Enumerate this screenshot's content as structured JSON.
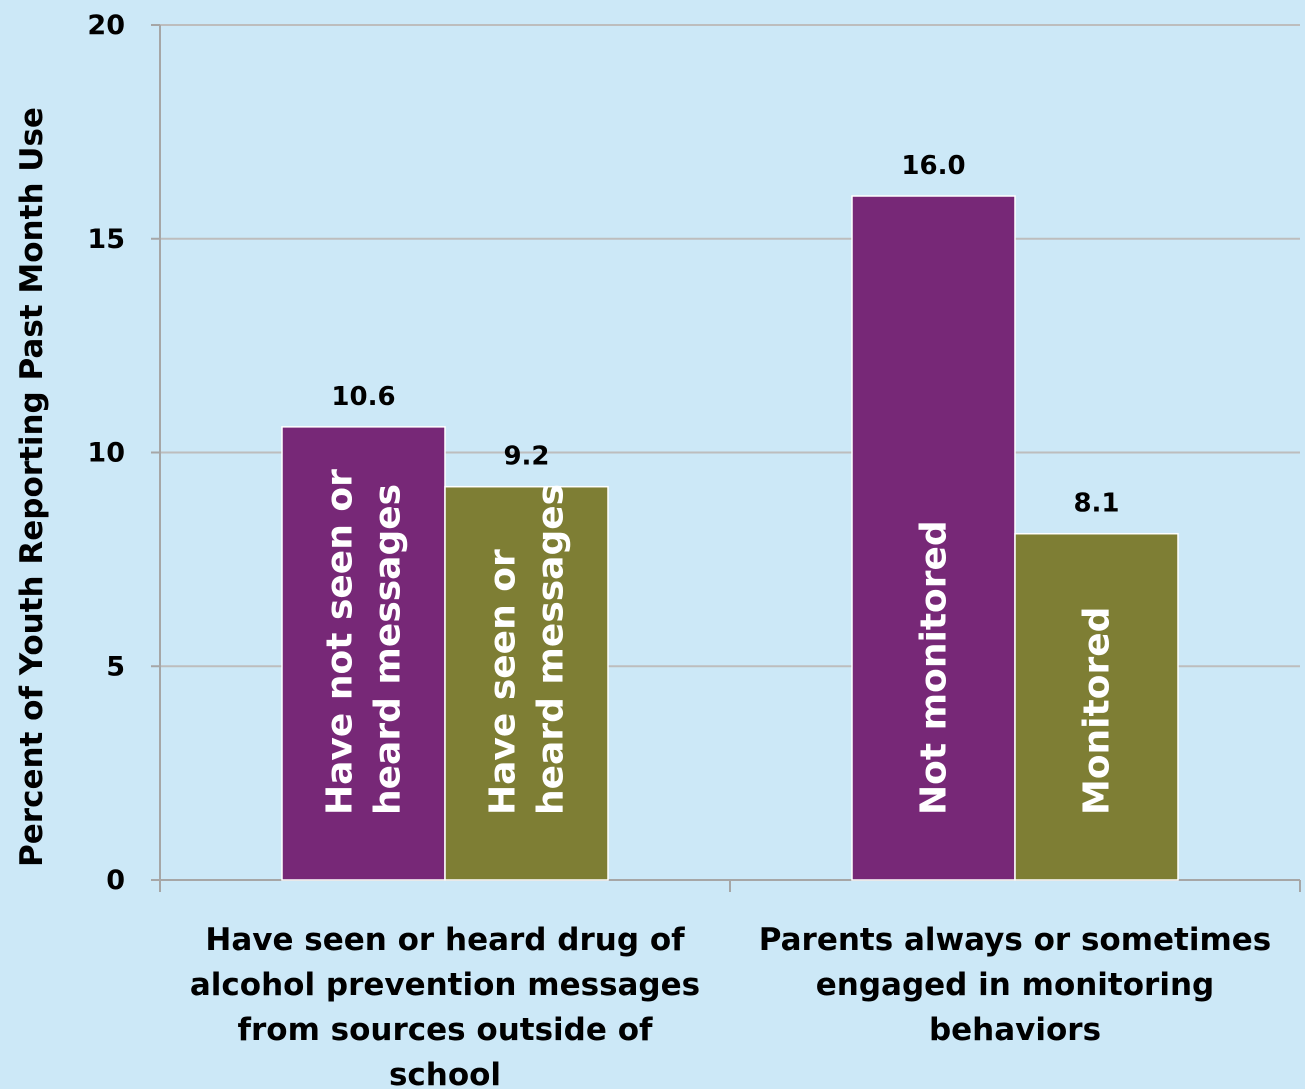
{
  "chart_data": {
    "type": "bar",
    "ylabel": "Percent of Youth Reporting Past Month Use",
    "xlabel": "",
    "ylim": [
      0,
      20
    ],
    "yticks": [
      "0",
      "5",
      "10",
      "15",
      "20"
    ],
    "grid": true,
    "categories": [
      [
        "Have seen or heard drug of",
        "alcohol prevention messages",
        "from sources outside of",
        "school"
      ],
      [
        "Parents always or sometimes",
        "engaged in monitoring",
        "behaviors"
      ]
    ],
    "groups": [
      {
        "bars": [
          {
            "value": 10.6,
            "value_label": "10.6",
            "label_lines": [
              "Have not seen or",
              "heard messages"
            ],
            "color": "#772877"
          },
          {
            "value": 9.2,
            "value_label": "9.2",
            "label_lines": [
              "Have seen or",
              "heard messages"
            ],
            "color": "#7e7e34"
          }
        ]
      },
      {
        "bars": [
          {
            "value": 16.0,
            "value_label": "16.0",
            "label_lines": [
              "Not monitored"
            ],
            "color": "#772877"
          },
          {
            "value": 8.1,
            "value_label": "8.1",
            "label_lines": [
              "Monitored"
            ],
            "color": "#7e7e34"
          }
        ]
      }
    ],
    "colors": {
      "background": "#cce8f7",
      "gridline": "#bdbdbd",
      "axis": "#a6a6a6"
    }
  }
}
